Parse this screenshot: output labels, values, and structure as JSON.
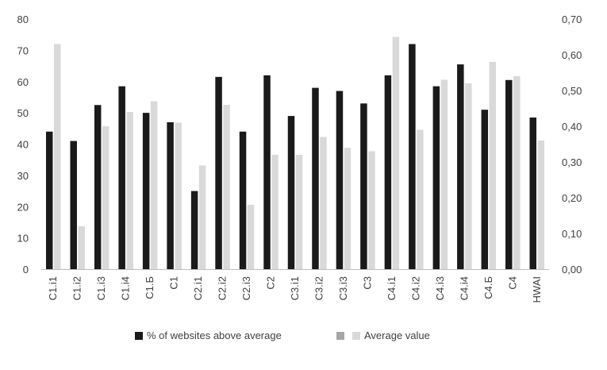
{
  "chart_data": {
    "type": "bar",
    "title": "",
    "xlabel": "",
    "ylabel": "",
    "y2label": "",
    "categories": [
      "C1.i1",
      "C1.i2",
      "C1.i3",
      "C1.i4",
      "C1.Б",
      "C1",
      "C2.i1",
      "C2.i2",
      "C2.i3",
      "C2",
      "C3.i1",
      "C3.i2",
      "C3.i3",
      "C3",
      "C4.i1",
      "C4.i2",
      "C4.i3",
      "C4.i4",
      "C4.Б",
      "C4",
      "HWAI"
    ],
    "series": [
      {
        "name": "% of websites above average",
        "axis": "left",
        "color": "#1a1a1a",
        "values": [
          44,
          41,
          52.5,
          58.5,
          50,
          47,
          25,
          61.5,
          44,
          62,
          49,
          58,
          57,
          53,
          62,
          72,
          58.5,
          65.5,
          51,
          60.5,
          48.5
        ]
      },
      {
        "name": "Average value",
        "axis": "right",
        "color": "#d9d9d9",
        "values": [
          0.63,
          0.12,
          0.4,
          0.44,
          0.47,
          0.41,
          0.29,
          0.46,
          0.18,
          0.32,
          0.32,
          0.37,
          0.34,
          0.33,
          0.65,
          0.39,
          0.53,
          0.52,
          0.58,
          0.54,
          0.36
        ]
      }
    ],
    "ylim": [
      0,
      80
    ],
    "yticks": [
      "0",
      "10",
      "20",
      "30",
      "40",
      "50",
      "60",
      "70",
      "80"
    ],
    "y2lim": [
      0,
      0.7
    ],
    "y2ticks": [
      "0,00",
      "0,10",
      "0,20",
      "0,30",
      "0,40",
      "0,50",
      "0,60",
      "0,70"
    ],
    "grid": false,
    "legend": {
      "position": "bottom",
      "entries": [
        {
          "label": "% of websites above average",
          "color": "#1a1a1a"
        },
        {
          "label": "",
          "color": "#a6a6a6"
        },
        {
          "label": "Average value",
          "color": "#d9d9d9"
        }
      ]
    }
  }
}
